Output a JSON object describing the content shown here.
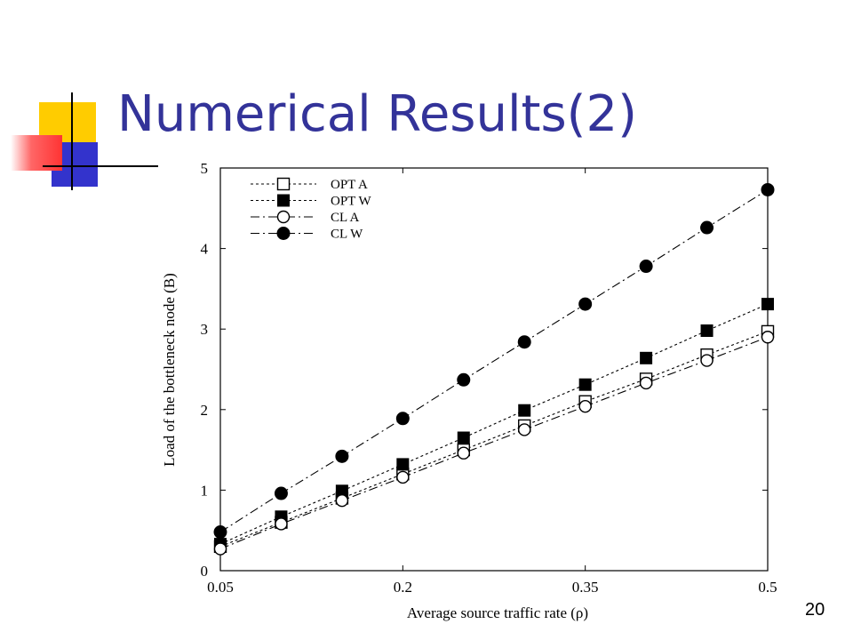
{
  "slide": {
    "title": "Numerical Results(2)",
    "slide_number": "20"
  },
  "colors": {
    "title": "#333399",
    "decor_yellow": "#FFCC00",
    "decor_blue": "#3333CC",
    "decor_red": "#FF3333"
  },
  "chart_data": {
    "type": "line",
    "xlabel": "Average source traffic rate (ρ)",
    "ylabel": "Load of the bottleneck node (B)",
    "xlim": [
      0.05,
      0.5
    ],
    "ylim": [
      0,
      5
    ],
    "xticks": [
      "0.05",
      "0.2",
      "0.35",
      "0.5"
    ],
    "yticks": [
      "0",
      "1",
      "2",
      "3",
      "4",
      "5"
    ],
    "legend_position": "top-left",
    "grid": false,
    "x": [
      0.05,
      0.1,
      0.15,
      0.2,
      0.25,
      0.3,
      0.35,
      0.4,
      0.45,
      0.5
    ],
    "series": [
      {
        "name": "OPT A",
        "marker": "open-square",
        "dash": "3,3",
        "values": [
          0.3,
          0.6,
          0.9,
          1.2,
          1.5,
          1.8,
          2.1,
          2.38,
          2.68,
          2.97
        ]
      },
      {
        "name": "OPT W",
        "marker": "filled-square",
        "dash": "3,3",
        "values": [
          0.33,
          0.67,
          0.99,
          1.32,
          1.65,
          1.99,
          2.31,
          2.64,
          2.98,
          3.31
        ]
      },
      {
        "name": "CL A",
        "marker": "open-circle",
        "dash": "10,4,2,4",
        "values": [
          0.27,
          0.58,
          0.87,
          1.16,
          1.46,
          1.75,
          2.04,
          2.33,
          2.61,
          2.9
        ]
      },
      {
        "name": "CL W",
        "marker": "filled-circle",
        "dash": "10,4,2,4",
        "values": [
          0.48,
          0.96,
          1.42,
          1.89,
          2.37,
          2.84,
          3.31,
          3.78,
          4.26,
          4.73
        ]
      }
    ]
  }
}
